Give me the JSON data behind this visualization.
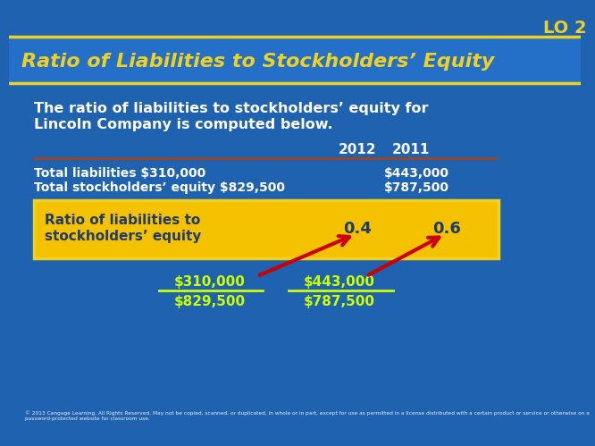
{
  "title": "Ratio of Liabilities to Stockholders’ Equity",
  "lo_label": "LO 2",
  "subtitle_line1": "The ratio of liabilities to stockholders’ equity for",
  "subtitle_line2": "Lincoln Company is computed below.",
  "col_headers": [
    "2012",
    "2011"
  ],
  "row1_label": "Total liabilities $310,000",
  "row1_val2": "$443,000",
  "row2_label": "Total stockholders’ equity $829,500",
  "row2_val2": "$787,500",
  "ratio_label_line1": "Ratio of liabilities to",
  "ratio_label_line2": "stockholders’ equity",
  "ratio_val1": "0.4",
  "ratio_val2": "0.6",
  "formula_2012_num": "$310,000",
  "formula_2012_den": "$829,500",
  "formula_2011_num": "$443,000",
  "formula_2011_den": "$787,500",
  "bg_color": "#1e62b0",
  "title_bar_color": "#2470c8",
  "white": "#ffffff",
  "yellow": "#f0d020",
  "bright_yellow": "#ccff00",
  "ratio_box_color": "#f5c200",
  "ratio_text_color": "#1e3a6e",
  "arrow_color": "#cc0000",
  "lo_text_color": "#f0d020",
  "copyright_text": "© 2013 Cengage Learning. All Rights Reserved. May not be copied, scanned, or duplicated, in whole or in part, except for use as permitted in a license distributed with a certain product or service or otherwise on a password-protected website for classroom use."
}
